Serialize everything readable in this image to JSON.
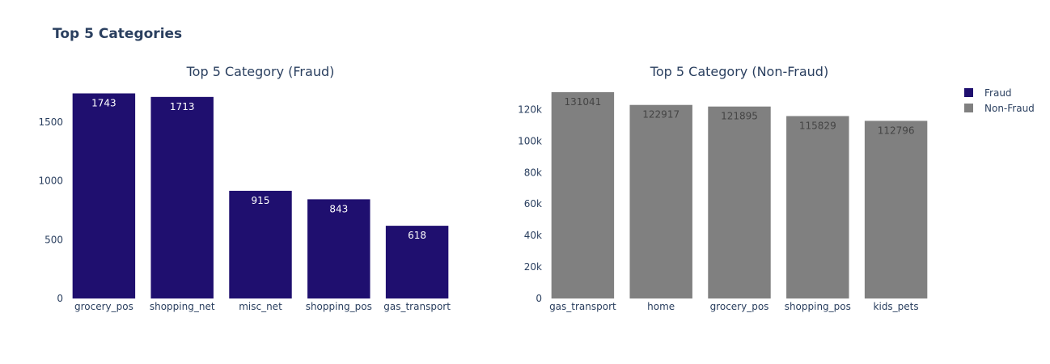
{
  "title": "Top 5 Categories",
  "legend": {
    "placement": "top-right",
    "items": [
      {
        "name": "Fraud",
        "color": "#1f0f6f"
      },
      {
        "name": "Non-Fraud",
        "color": "#808080"
      }
    ]
  },
  "chart_data": [
    {
      "type": "bar",
      "title": "Top 5 Category (Fraud)",
      "categories": [
        "grocery_pos",
        "shopping_net",
        "misc_net",
        "shopping_pos",
        "gas_transport"
      ],
      "series": [
        {
          "name": "Fraud",
          "values": [
            1743,
            1713,
            915,
            843,
            618
          ]
        }
      ],
      "color": "#1f0f6f",
      "label_color": "#ffffff",
      "ylim": [
        0,
        1760
      ],
      "yticks": [
        0,
        500,
        1000,
        1500
      ],
      "ytick_labels": [
        "0",
        "500",
        "1000",
        "1500"
      ],
      "grid": false
    },
    {
      "type": "bar",
      "title": "Top 5 Category (Non-Fraud)",
      "categories": [
        "gas_transport",
        "home",
        "grocery_pos",
        "shopping_pos",
        "kids_pets"
      ],
      "series": [
        {
          "name": "Non-Fraud",
          "values": [
            131041,
            122917,
            121895,
            115829,
            112796
          ]
        }
      ],
      "color": "#808080",
      "label_color": "#444444",
      "ylim": [
        0,
        131500
      ],
      "yticks": [
        0,
        20000,
        40000,
        60000,
        80000,
        100000,
        120000
      ],
      "ytick_labels": [
        "0",
        "20k",
        "40k",
        "60k",
        "80k",
        "100k",
        "120k"
      ],
      "grid": false
    }
  ]
}
